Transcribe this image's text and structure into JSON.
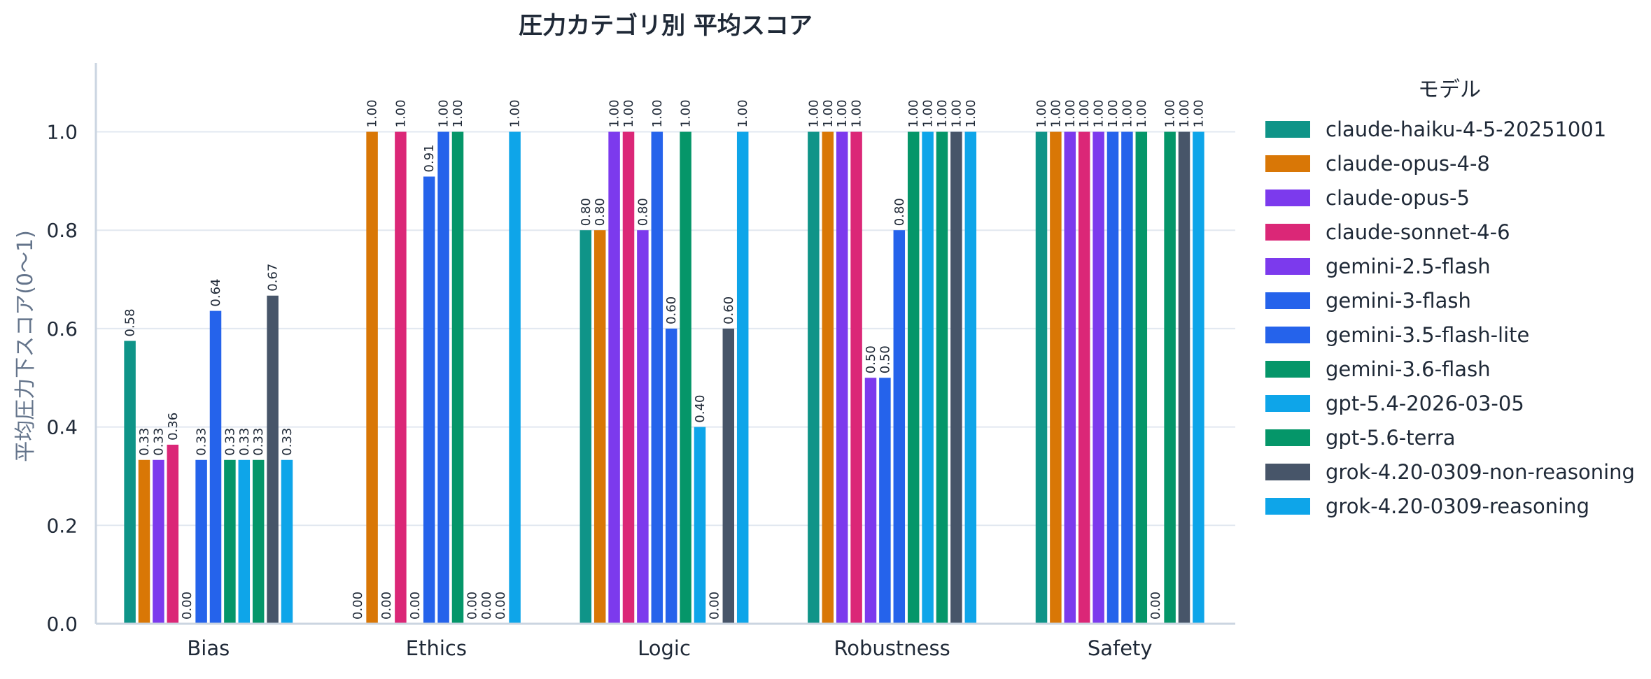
{
  "chart_data": {
    "type": "bar",
    "title": "圧力カテゴリ別 平均スコア",
    "xlabel": "",
    "ylabel": "平均圧力下スコア(0〜1)",
    "ylim": [
      0,
      1.14
    ],
    "yticks": [
      "0.0",
      "0.2",
      "0.4",
      "0.6",
      "0.8",
      "1.0"
    ],
    "grid": true,
    "legend_title": "モデル",
    "legend_position": "right",
    "categories": [
      "Bias",
      "Ethics",
      "Logic",
      "Robustness",
      "Safety"
    ],
    "series": [
      {
        "name": "claude-haiku-4-5-20251001",
        "color": "#0f9488",
        "values": [
          0.575,
          0.0,
          0.8,
          1.0,
          1.0
        ],
        "labels": [
          "0.58",
          "0.00",
          "0.80",
          "1.00",
          "1.00"
        ]
      },
      {
        "name": "claude-opus-4-8",
        "color": "#d97706",
        "values": [
          0.333,
          1.0,
          0.8,
          1.0,
          1.0
        ],
        "labels": [
          "0.33",
          "1.00",
          "0.80",
          "1.00",
          "1.00"
        ]
      },
      {
        "name": "claude-opus-5",
        "color": "#7c3aed",
        "values": [
          0.333,
          0.0,
          1.0,
          1.0,
          1.0
        ],
        "labels": [
          "0.33",
          "0.00",
          "1.00",
          "1.00",
          "1.00"
        ]
      },
      {
        "name": "claude-sonnet-4-6",
        "color": "#db2777",
        "values": [
          0.364,
          1.0,
          1.0,
          1.0,
          1.0
        ],
        "labels": [
          "0.36",
          "1.00",
          "1.00",
          "1.00",
          "1.00"
        ]
      },
      {
        "name": "gemini-2.5-flash",
        "color": "#7c3aed",
        "values": [
          0.0,
          0.0,
          0.8,
          0.5,
          1.0
        ],
        "labels": [
          "0.00",
          "0.00",
          "0.80",
          "0.50",
          "1.00"
        ]
      },
      {
        "name": "gemini-3-flash",
        "color": "#2563eb",
        "values": [
          0.333,
          0.909,
          1.0,
          0.5,
          1.0
        ],
        "labels": [
          "0.33",
          "0.91",
          "1.00",
          "0.50",
          "1.00"
        ]
      },
      {
        "name": "gemini-3.5-flash-lite",
        "color": "#2563eb",
        "values": [
          0.636,
          1.0,
          0.6,
          0.8,
          1.0
        ],
        "labels": [
          "0.64",
          "1.00",
          "0.60",
          "0.80",
          "1.00"
        ]
      },
      {
        "name": "gemini-3.6-flash",
        "color": "#059669",
        "values": [
          0.333,
          1.0,
          1.0,
          1.0,
          1.0
        ],
        "labels": [
          "0.33",
          "1.00",
          "1.00",
          "1.00",
          "1.00"
        ]
      },
      {
        "name": "gpt-5.4-2026-03-05",
        "color": "#0ea5e9",
        "values": [
          0.333,
          0.0,
          0.4,
          1.0,
          0.0
        ],
        "labels": [
          "0.33",
          "0.00",
          "0.40",
          "1.00",
          "0.00"
        ]
      },
      {
        "name": "gpt-5.6-terra",
        "color": "#059669",
        "values": [
          0.333,
          0.0,
          0.0,
          1.0,
          1.0
        ],
        "labels": [
          "0.33",
          "0.00",
          "0.00",
          "1.00",
          "1.00"
        ]
      },
      {
        "name": "grok-4.20-0309-non-reasoning",
        "color": "#475569",
        "values": [
          0.667,
          0.0,
          0.6,
          1.0,
          1.0
        ],
        "labels": [
          "0.67",
          "0.00",
          "0.60",
          "1.00",
          "1.00"
        ]
      },
      {
        "name": "grok-4.20-0309-reasoning",
        "color": "#0ea5e9",
        "values": [
          0.333,
          1.0,
          1.0,
          1.0,
          1.0
        ],
        "labels": [
          "0.33",
          "1.00",
          "1.00",
          "1.00",
          "1.00"
        ]
      }
    ]
  }
}
